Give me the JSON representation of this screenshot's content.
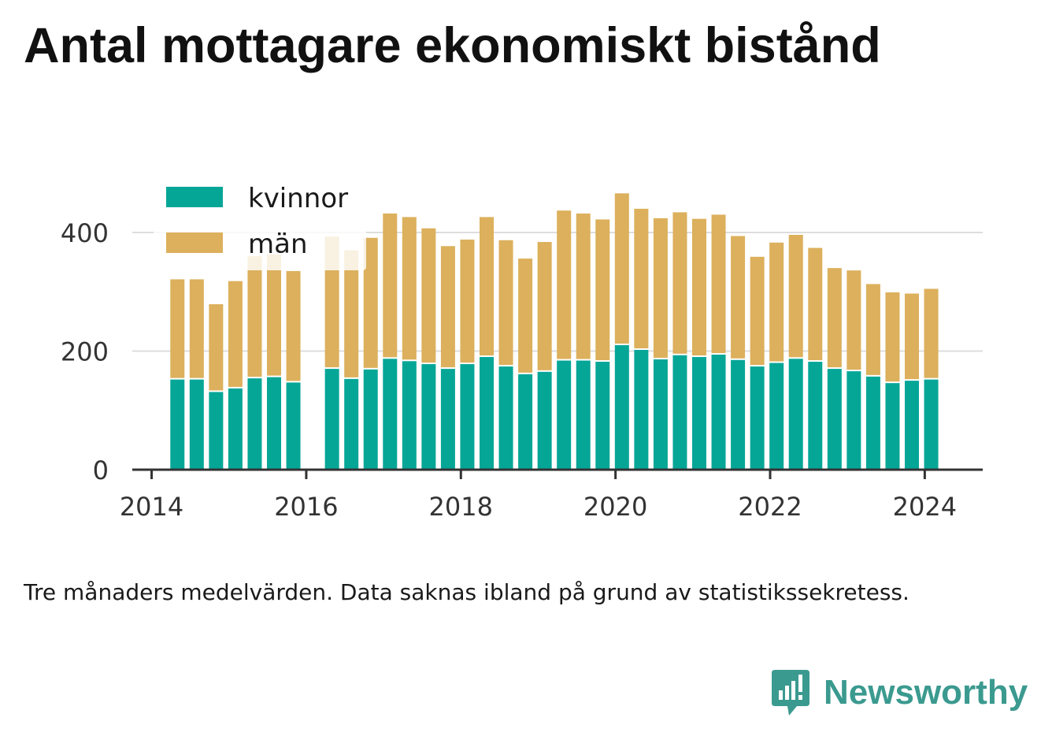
{
  "title": "Antal mottagare ekonomiskt bistånd",
  "note": "Tre månaders medelvärden. Data saknas ibland på grund av statistikssekretess.",
  "brand": {
    "name": "Newsworthy",
    "icon": "newsworthy-logo-icon"
  },
  "colors": {
    "kvinnor": "#06a697",
    "man": "#dcb05c",
    "grid": "#dddddd",
    "axis": "#333333",
    "brand": "#3b9a8f"
  },
  "chart_data": {
    "type": "bar",
    "stacked": true,
    "x_ticks": [
      "2014",
      "2016",
      "2018",
      "2020",
      "2022",
      "2024"
    ],
    "y_ticks": [
      "0",
      "200",
      "400"
    ],
    "ylim": [
      0,
      450
    ],
    "xlim": [
      "2013-10-01",
      "2024-10-01"
    ],
    "grid": true,
    "legend_position": "top-left",
    "categories": [
      "2014-05",
      "2014-08",
      "2014-11",
      "2015-02",
      "2015-05",
      "2015-08",
      "2015-11",
      "2016-05",
      "2016-08",
      "2016-11",
      "2017-02",
      "2017-05",
      "2017-08",
      "2017-11",
      "2018-02",
      "2018-05",
      "2018-08",
      "2018-11",
      "2019-02",
      "2019-05",
      "2019-08",
      "2019-11",
      "2020-02",
      "2020-05",
      "2020-08",
      "2020-11",
      "2021-02",
      "2021-05",
      "2021-08",
      "2021-11",
      "2022-02",
      "2022-05",
      "2022-08",
      "2022-11",
      "2023-02",
      "2023-05",
      "2023-08",
      "2023-11",
      "2024-02"
    ],
    "series": [
      {
        "name": "kvinnor",
        "values": [
          152,
          152,
          131,
          137,
          154,
          156,
          147,
          170,
          153,
          169,
          187,
          183,
          178,
          170,
          178,
          190,
          174,
          161,
          165,
          184,
          184,
          182,
          210,
          202,
          186,
          193,
          190,
          194,
          185,
          174,
          180,
          187,
          182,
          170,
          166,
          157,
          146,
          150,
          152
        ]
      },
      {
        "name": "män",
        "values": [
          169,
          169,
          148,
          181,
          206,
          207,
          188,
          223,
          217,
          222,
          245,
          243,
          229,
          207,
          210,
          236,
          213,
          195,
          219,
          253,
          248,
          240,
          256,
          238,
          238,
          241,
          233,
          236,
          209,
          185,
          203,
          209,
          192,
          170,
          170,
          156,
          153,
          147,
          153
        ]
      }
    ]
  }
}
